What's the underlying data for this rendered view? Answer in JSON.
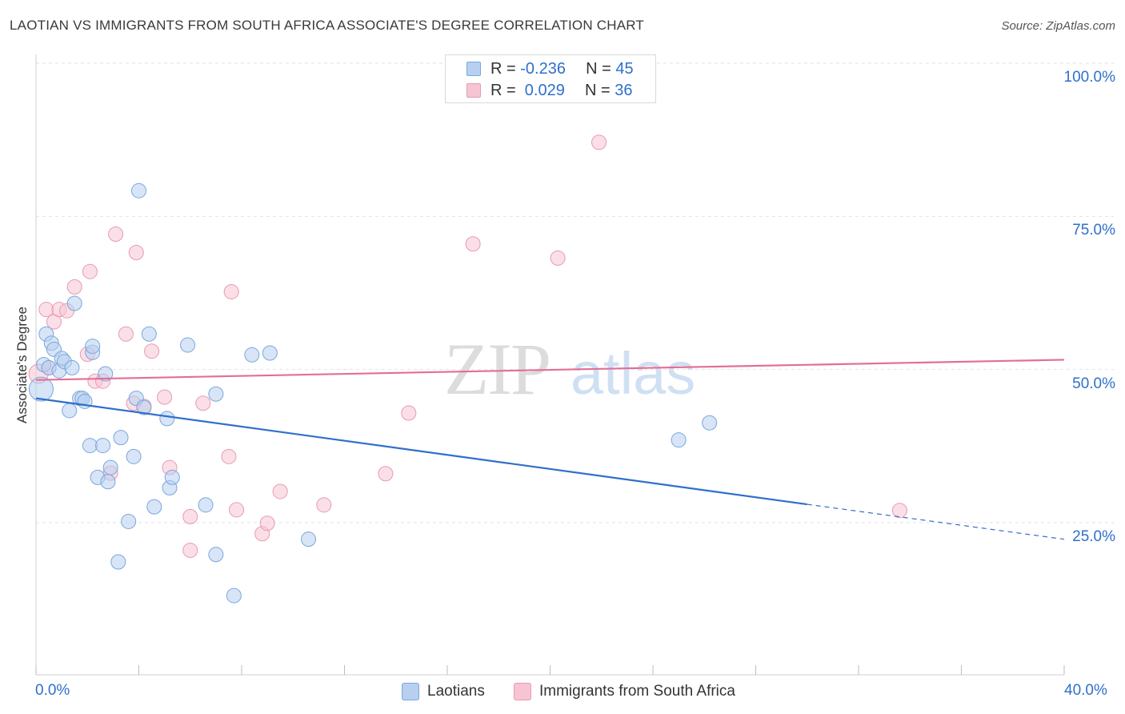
{
  "header": {
    "title": "LAOTIAN VS IMMIGRANTS FROM SOUTH AFRICA ASSOCIATE'S DEGREE CORRELATION CHART",
    "source": "Source: ZipAtlas.com"
  },
  "watermark": {
    "part1": "ZIP",
    "part2": "atlas"
  },
  "legend_top": {
    "rows": [
      {
        "r_label": "R = ",
        "r_value": "-0.236",
        "n_label": "N = ",
        "n_value": "45"
      },
      {
        "r_label": "R = ",
        "r_value": " 0.029",
        "n_label": "N = ",
        "n_value": "36"
      }
    ]
  },
  "colors": {
    "laotians_fill": "#b7d0f0",
    "laotians_stroke": "#7aa6dd",
    "laotians_line": "#2f6fcc",
    "sa_fill": "#f7c4d3",
    "sa_stroke": "#e79ab3",
    "sa_line": "#e36e96",
    "axis_text": "#2f6fcc",
    "grid": "#e2e2e2"
  },
  "chart_data": {
    "type": "scatter",
    "title": "LAOTIAN VS IMMIGRANTS FROM SOUTH AFRICA ASSOCIATE'S DEGREE CORRELATION CHART",
    "xlabel": "",
    "ylabel": "Associate's Degree",
    "xlim": [
      0,
      40
    ],
    "ylim": [
      0,
      105
    ],
    "x_tick_labels": [
      "0.0%",
      "40.0%"
    ],
    "y_ticks": [
      25,
      50,
      75,
      100
    ],
    "y_tick_labels": [
      "25.0%",
      "50.0%",
      "75.0%",
      "100.0%"
    ],
    "grid": true,
    "legend_placement": "bottom-center",
    "series": [
      {
        "name": "Laotians",
        "r": -0.236,
        "n": 45,
        "trend": {
          "x0": 0,
          "y0": 45.3,
          "x1": 30,
          "y1": 28.0,
          "dash_to_x": 40,
          "dash_to_y": 22.3
        },
        "points": [
          [
            0.2,
            46.8
          ],
          [
            0.3,
            50.8
          ],
          [
            0.4,
            55.8
          ],
          [
            0.5,
            50.3
          ],
          [
            0.6,
            54.3
          ],
          [
            0.7,
            53.3
          ],
          [
            0.9,
            49.8
          ],
          [
            1.0,
            51.8
          ],
          [
            1.1,
            51.3
          ],
          [
            1.3,
            43.3
          ],
          [
            1.4,
            50.3
          ],
          [
            1.5,
            60.8
          ],
          [
            1.7,
            45.3
          ],
          [
            1.8,
            45.3
          ],
          [
            1.9,
            44.8
          ],
          [
            2.1,
            37.6
          ],
          [
            2.2,
            52.8
          ],
          [
            2.2,
            53.8
          ],
          [
            2.4,
            32.4
          ],
          [
            2.6,
            37.6
          ],
          [
            2.7,
            49.3
          ],
          [
            2.8,
            31.7
          ],
          [
            2.9,
            34.0
          ],
          [
            3.2,
            18.6
          ],
          [
            3.3,
            38.9
          ],
          [
            3.6,
            25.2
          ],
          [
            3.8,
            35.8
          ],
          [
            3.9,
            45.3
          ],
          [
            4.0,
            79.2
          ],
          [
            4.2,
            43.8
          ],
          [
            4.4,
            55.8
          ],
          [
            4.6,
            27.6
          ],
          [
            5.1,
            42.0
          ],
          [
            5.2,
            30.7
          ],
          [
            5.3,
            32.4
          ],
          [
            5.9,
            54.0
          ],
          [
            6.6,
            27.9
          ],
          [
            7.0,
            19.8
          ],
          [
            7.0,
            46.0
          ],
          [
            7.7,
            13.1
          ],
          [
            8.4,
            52.4
          ],
          [
            9.1,
            52.7
          ],
          [
            10.6,
            22.3
          ],
          [
            25.0,
            38.5
          ],
          [
            26.2,
            41.3
          ]
        ]
      },
      {
        "name": "Immigrants from South Africa",
        "r": 0.029,
        "n": 36,
        "trend": {
          "x0": 0,
          "y0": 48.3,
          "x1": 40,
          "y1": 51.6
        },
        "points": [
          [
            0.1,
            49.3
          ],
          [
            0.4,
            59.8
          ],
          [
            0.5,
            50.3
          ],
          [
            0.7,
            57.8
          ],
          [
            0.9,
            59.8
          ],
          [
            1.2,
            59.6
          ],
          [
            1.5,
            63.5
          ],
          [
            2.0,
            52.5
          ],
          [
            2.1,
            66.0
          ],
          [
            2.3,
            48.1
          ],
          [
            2.6,
            48.1
          ],
          [
            2.9,
            33.1
          ],
          [
            3.1,
            72.1
          ],
          [
            3.5,
            55.8
          ],
          [
            3.8,
            44.5
          ],
          [
            3.9,
            69.1
          ],
          [
            4.2,
            44.0
          ],
          [
            4.5,
            53.0
          ],
          [
            5.0,
            45.5
          ],
          [
            5.2,
            34.0
          ],
          [
            6.0,
            26.0
          ],
          [
            6.0,
            20.5
          ],
          [
            6.5,
            44.5
          ],
          [
            7.5,
            35.8
          ],
          [
            7.6,
            62.7
          ],
          [
            7.8,
            27.1
          ],
          [
            8.8,
            23.2
          ],
          [
            9.0,
            24.9
          ],
          [
            9.5,
            30.1
          ],
          [
            11.2,
            27.9
          ],
          [
            13.6,
            33.0
          ],
          [
            14.5,
            42.9
          ],
          [
            17.0,
            70.5
          ],
          [
            20.3,
            68.2
          ],
          [
            21.9,
            87.1
          ],
          [
            33.6,
            27.0
          ]
        ]
      }
    ]
  }
}
